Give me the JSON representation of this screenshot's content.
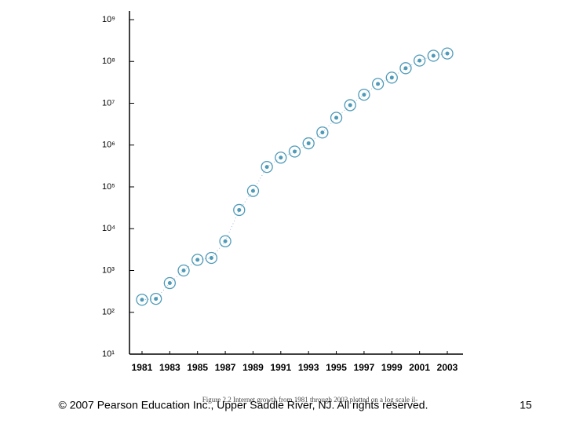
{
  "chart_data": {
    "type": "scatter",
    "log_scale_y": true,
    "x": [
      1981,
      1982,
      1983,
      1984,
      1985,
      1986,
      1987,
      1988,
      1989,
      1990,
      1991,
      1992,
      1993,
      1994,
      1995,
      1996,
      1997,
      1998,
      1999,
      2000,
      2001,
      2002,
      2003
    ],
    "series": [
      {
        "color": "#4f9ab8",
        "values": [
          200,
          210,
          500,
          1000,
          1800,
          2000,
          5000,
          28000,
          80000,
          300000,
          500000,
          700000,
          1100000,
          2000000,
          4500000,
          9000000,
          16000000,
          29000000,
          41000000,
          69000000,
          105000000,
          137000000,
          155000000
        ]
      }
    ],
    "xlim": [
      1980,
      2004
    ],
    "xticks": [
      1981,
      1983,
      1985,
      1987,
      1989,
      1991,
      1993,
      1995,
      1997,
      1999,
      2001,
      2003
    ],
    "ylim": [
      10,
      1000000000
    ],
    "yticks": [
      {
        "value": 10,
        "label": "10¹"
      },
      {
        "value": 100,
        "label": "10²"
      },
      {
        "value": 1000,
        "label": "10³"
      },
      {
        "value": 10000,
        "label": "10⁴"
      },
      {
        "value": 100000,
        "label": "10⁵"
      },
      {
        "value": 1000000,
        "label": "10⁶"
      },
      {
        "value": 10000000,
        "label": "10⁷"
      },
      {
        "value": 100000000,
        "label": "10⁸"
      },
      {
        "value": 1000000000,
        "label": "10⁹"
      }
    ]
  },
  "caption": "Figure 2.2 Internet growth from 1981 through 2003 plotted on a log scale il-",
  "footer": "© 2007 Pearson Education Inc., Upper Saddle River, NJ. All rights reserved.",
  "page_number": "15"
}
